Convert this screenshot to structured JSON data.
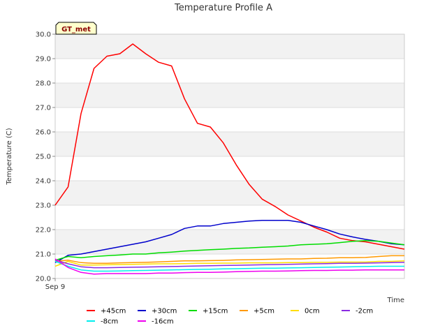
{
  "chart_data": {
    "type": "line",
    "title": "Temperature Profile A",
    "xlabel": "Time",
    "ylabel": "Temperature (C)",
    "ylim": [
      20.0,
      30.0
    ],
    "xlim": [
      0,
      27
    ],
    "yticks": [
      "20.0",
      "21.0",
      "22.0",
      "23.0",
      "24.0",
      "25.0",
      "26.0",
      "27.0",
      "28.0",
      "29.0",
      "30.0"
    ],
    "xtick_label": "Sep 9",
    "badge": "GT_met",
    "band_fill": "#f2f2f2",
    "series": [
      {
        "name": "+45cm",
        "color": "#ff0000",
        "values": [
          23.0,
          23.75,
          26.75,
          28.6,
          29.1,
          29.2,
          29.6,
          29.2,
          28.85,
          28.7,
          27.35,
          26.35,
          26.2,
          25.55,
          24.65,
          23.85,
          23.25,
          22.95,
          22.6,
          22.35,
          22.1,
          21.9,
          21.65,
          21.55,
          21.5,
          21.4,
          21.3,
          21.2
        ]
      },
      {
        "name": "+30cm",
        "color": "#0000cc",
        "values": [
          20.65,
          20.95,
          21.0,
          21.1,
          21.2,
          21.3,
          21.4,
          21.5,
          21.65,
          21.8,
          22.05,
          22.15,
          22.15,
          22.25,
          22.3,
          22.35,
          22.38,
          22.38,
          22.38,
          22.3,
          22.15,
          22.0,
          21.82,
          21.7,
          21.6,
          21.52,
          21.42,
          21.38
        ]
      },
      {
        "name": "+15cm",
        "color": "#00dd00",
        "values": [
          20.75,
          20.9,
          20.85,
          20.9,
          20.93,
          20.96,
          21.0,
          21.0,
          21.05,
          21.08,
          21.12,
          21.15,
          21.18,
          21.2,
          21.23,
          21.25,
          21.28,
          21.3,
          21.33,
          21.38,
          21.4,
          21.42,
          21.47,
          21.52,
          21.55,
          21.52,
          21.45,
          21.38
        ]
      },
      {
        "name": "+5cm",
        "color": "#ff9900",
        "values": [
          20.7,
          20.75,
          20.65,
          20.62,
          20.62,
          20.64,
          20.65,
          20.66,
          20.68,
          20.7,
          20.72,
          20.72,
          20.73,
          20.74,
          20.76,
          20.77,
          20.78,
          20.79,
          20.8,
          20.8,
          20.82,
          20.83,
          20.85,
          20.85,
          20.86,
          20.9,
          20.93,
          20.93
        ]
      },
      {
        "name": "0cm",
        "color": "#ffdd00",
        "values": [
          20.5,
          20.7,
          20.55,
          20.55,
          20.56,
          20.57,
          20.58,
          20.59,
          20.6,
          20.6,
          20.61,
          20.62,
          20.62,
          20.63,
          20.63,
          20.64,
          20.64,
          20.64,
          20.65,
          20.65,
          20.66,
          20.66,
          20.67,
          20.67,
          20.67,
          20.7,
          20.7,
          20.72
        ]
      },
      {
        "name": "-2cm",
        "color": "#8a2be2",
        "values": [
          20.75,
          20.6,
          20.48,
          20.44,
          20.44,
          20.45,
          20.46,
          20.47,
          20.48,
          20.49,
          20.5,
          20.51,
          20.52,
          20.53,
          20.54,
          20.55,
          20.56,
          20.57,
          20.58,
          20.59,
          20.6,
          20.61,
          20.62,
          20.62,
          20.63,
          20.64,
          20.65,
          20.66
        ]
      },
      {
        "name": "-8cm",
        "color": "#00eeee",
        "values": [
          20.7,
          20.5,
          20.35,
          20.3,
          20.3,
          20.31,
          20.32,
          20.33,
          20.34,
          20.35,
          20.36,
          20.37,
          20.38,
          20.39,
          20.4,
          20.41,
          20.42,
          20.42,
          20.43,
          20.44,
          20.45,
          20.46,
          20.47,
          20.48,
          20.49,
          20.5,
          20.5,
          20.5
        ]
      },
      {
        "name": "-16cm",
        "color": "#ee00ee",
        "values": [
          20.8,
          20.45,
          20.25,
          20.18,
          20.2,
          20.2,
          20.2,
          20.2,
          20.22,
          20.22,
          20.24,
          20.25,
          20.25,
          20.26,
          20.28,
          20.29,
          20.3,
          20.3,
          20.31,
          20.32,
          20.33,
          20.33,
          20.34,
          20.34,
          20.35,
          20.35,
          20.35,
          20.35
        ]
      }
    ]
  }
}
